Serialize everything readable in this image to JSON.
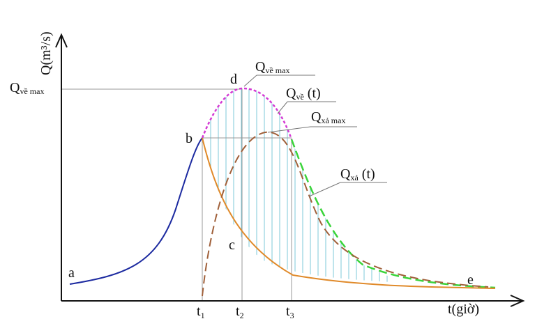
{
  "axes": {
    "y_label": "Q(m³/s)",
    "x_label": "t(giờ)"
  },
  "points": [
    "a",
    "b",
    "c",
    "d",
    "e"
  ],
  "ticks": [
    {
      "main": "t",
      "sub": "1"
    },
    {
      "main": "t",
      "sub": "2"
    },
    {
      "main": "t",
      "sub": "3"
    }
  ],
  "labels": {
    "y_mark": {
      "main": "Q",
      "sub": "về max"
    },
    "q_in_max": {
      "main": "Q",
      "sub": "về max"
    },
    "q_in_t": {
      "main": "Q",
      "sub": "về",
      "rest": " (t)"
    },
    "q_out_max": {
      "main": "Q",
      "sub": "xả max"
    },
    "q_out_t": {
      "main": "Q",
      "sub": "xả",
      "rest": " (t)"
    }
  }
}
